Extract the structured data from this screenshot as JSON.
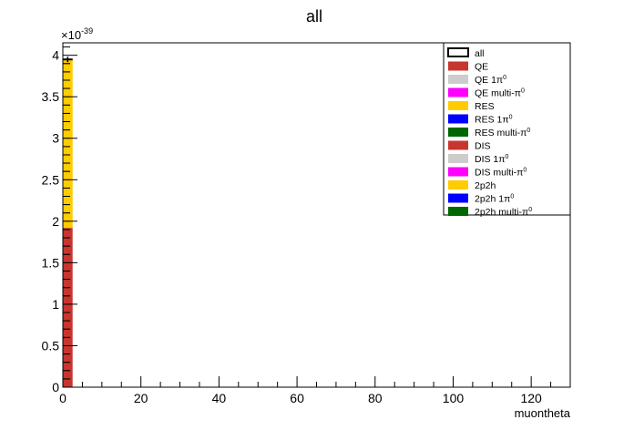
{
  "chart_data": {
    "type": "bar",
    "stacked": true,
    "title": "all",
    "xlabel": "muontheta",
    "ylabel": "",
    "y_exponent_label": "×10",
    "y_exponent_power": "-39",
    "xlim": [
      0,
      130
    ],
    "ylim": [
      0,
      4.15
    ],
    "x_ticks": [
      0,
      20,
      40,
      60,
      80,
      100,
      120
    ],
    "y_ticks": [
      0,
      0.5,
      1,
      1.5,
      2,
      2.5,
      3,
      3.5,
      4
    ],
    "y_tick_labels": [
      "0",
      "0.5",
      "1",
      "1.5",
      "2",
      "2.5",
      "3",
      "3.5",
      "4"
    ],
    "x_tick_labels": [
      "0",
      "20",
      "40",
      "60",
      "80",
      "100",
      "120"
    ],
    "bin": [
      0,
      2.5
    ],
    "total_value": 3.95,
    "legend_position": "top-right",
    "grid": false,
    "series": [
      {
        "name": "all",
        "color": "#ffffff",
        "value": 3.95,
        "legend_style": "outline"
      },
      {
        "name": "QE",
        "color": "#c8352f",
        "value": 0
      },
      {
        "name": "QE 1π",
        "sup": "0",
        "color": "#cccccc",
        "value": 0
      },
      {
        "name": "QE multi-π",
        "sup": "0",
        "color": "#ff00ff",
        "value": 0
      },
      {
        "name": "RES",
        "color": "#ffcc00",
        "value": 0
      },
      {
        "name": "RES 1π",
        "sup": "0",
        "color": "#0000ff",
        "value": 0
      },
      {
        "name": "RES multi-π",
        "sup": "0",
        "color": "#006600",
        "value": 0
      },
      {
        "name": "DIS",
        "color": "#c8352f",
        "value": 1.92
      },
      {
        "name": "DIS 1π",
        "sup": "0",
        "color": "#cccccc",
        "value": 0
      },
      {
        "name": "DIS multi-π",
        "sup": "0",
        "color": "#ff00ff",
        "value": 0
      },
      {
        "name": "2p2h",
        "color": "#ffcc00",
        "value": 2.03
      },
      {
        "name": "2p2h 1π",
        "sup": "0",
        "color": "#0000ff",
        "value": 0
      },
      {
        "name": "2p2h multi-π",
        "sup": "0",
        "color": "#006600",
        "value": 0
      }
    ]
  }
}
